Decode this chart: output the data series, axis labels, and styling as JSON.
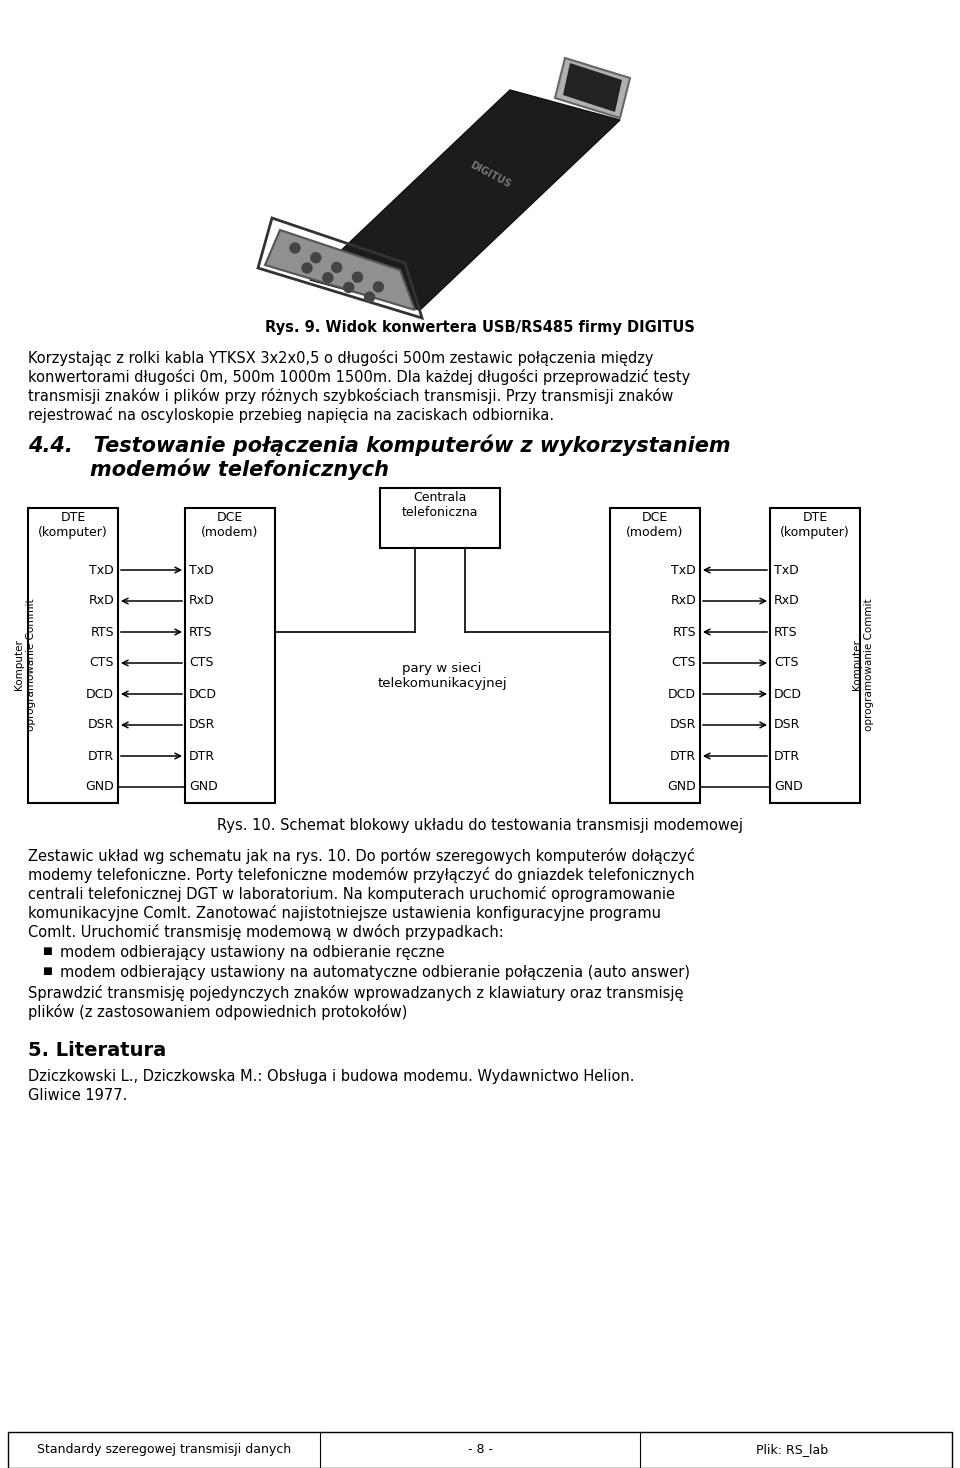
{
  "bg_color": "#ffffff",
  "page_width": 9.6,
  "page_height": 14.68,
  "image_caption": "Rys. 9. Widok konwertera USB/RS485 firmy DIGITUS",
  "footer_left": "Standardy szeregowej transmisji danych",
  "footer_center": "- 8 -",
  "footer_right": "Plik: RS_lab",
  "signals": [
    "TxD",
    "RxD",
    "RTS",
    "CTS",
    "DCD",
    "DSR",
    "DTR",
    "GND"
  ],
  "left_dirs": [
    "right",
    "left",
    "right",
    "left",
    "left",
    "left",
    "right",
    "none"
  ],
  "right_dirs": [
    "left",
    "right",
    "left",
    "right",
    "right",
    "right",
    "left",
    "none"
  ],
  "diagram_caption": "Rys. 10. Schemat blokowy układu do testowania transmisji modemowej",
  "bullet1": "modem odbierający ustawiony na odbieranie ręczne",
  "bullet2": "modem odbierający ustawiony na automatyczne odbieranie połączenia (auto answer)"
}
